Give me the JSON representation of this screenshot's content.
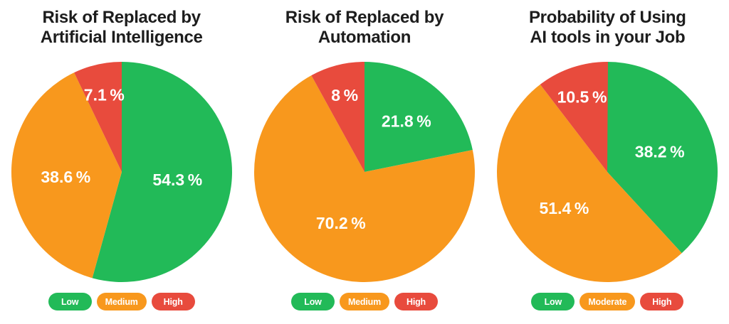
{
  "page": {
    "background": "#ffffff"
  },
  "colors": {
    "low": "#22ba58",
    "medium": "#f8981d",
    "high": "#e84b3d",
    "title_text": "#1d1d1d",
    "slice_label_text": "#ffffff"
  },
  "chart_data": [
    {
      "type": "pie",
      "title_text": "Risk of Replaced by\nArtificial Intelligence",
      "start_angle_deg": 0,
      "direction": "clockwise",
      "slices": [
        {
          "name": "Low",
          "value": 54.3,
          "label": "54.3 %",
          "color_key": "low"
        },
        {
          "name": "Medium",
          "value": 38.6,
          "label": "38.6 %",
          "color_key": "medium"
        },
        {
          "name": "High",
          "value": 7.1,
          "label": "7.1 %",
          "color_key": "high"
        }
      ],
      "legend": [
        {
          "label": "Low",
          "color_key": "low"
        },
        {
          "label": "Medium",
          "color_key": "medium"
        },
        {
          "label": "High",
          "color_key": "high"
        }
      ]
    },
    {
      "type": "pie",
      "title_text": "Risk of Replaced by\nAutomation",
      "start_angle_deg": 0,
      "direction": "clockwise",
      "slices": [
        {
          "name": "Low",
          "value": 21.8,
          "label": "21.8 %",
          "color_key": "low"
        },
        {
          "name": "Medium",
          "value": 70.2,
          "label": "70.2 %",
          "color_key": "medium"
        },
        {
          "name": "High",
          "value": 8,
          "label": "8 %",
          "color_key": "high"
        }
      ],
      "legend": [
        {
          "label": "Low",
          "color_key": "low"
        },
        {
          "label": "Medium",
          "color_key": "medium"
        },
        {
          "label": "High",
          "color_key": "high"
        }
      ]
    },
    {
      "type": "pie",
      "title_text": "Probability of Using\nAI tools in your Job",
      "start_angle_deg": 0,
      "direction": "clockwise",
      "slices": [
        {
          "name": "Low",
          "value": 38.2,
          "label": "38.2 %",
          "color_key": "low"
        },
        {
          "name": "Moderate",
          "value": 51.4,
          "label": "51.4 %",
          "color_key": "medium"
        },
        {
          "name": "High",
          "value": 10.5,
          "label": "10.5 %",
          "color_key": "high"
        }
      ],
      "legend": [
        {
          "label": "Low",
          "color_key": "low"
        },
        {
          "label": "Moderate",
          "color_key": "medium"
        },
        {
          "label": "High",
          "color_key": "high"
        }
      ]
    }
  ]
}
